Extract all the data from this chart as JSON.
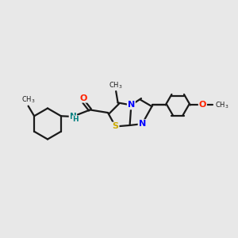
{
  "background_color": "#e8e8e8",
  "bond_color": "#1a1a1a",
  "atom_colors": {
    "N": "#0000ff",
    "O": "#ff2200",
    "S": "#ccaa00",
    "NH": "#008080",
    "C": "#1a1a1a"
  },
  "figsize": [
    3.0,
    3.0
  ],
  "dpi": 100,
  "xlim": [
    0,
    10
  ],
  "ylim": [
    3.0,
    6.5
  ]
}
